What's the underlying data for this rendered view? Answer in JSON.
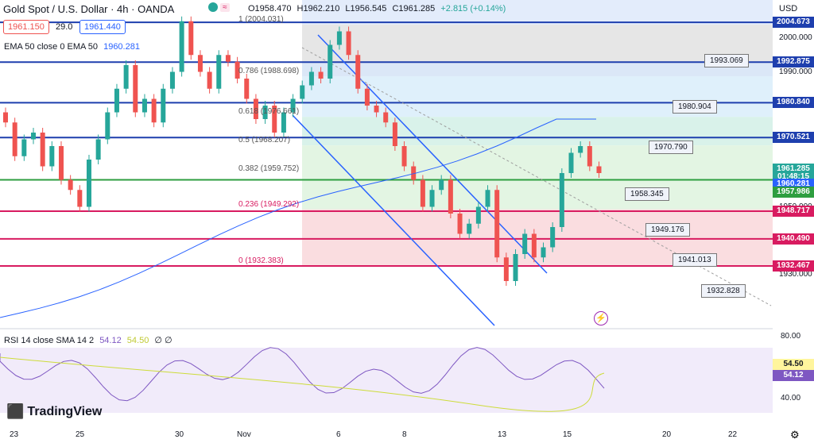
{
  "header": {
    "symbol": "Gold Spot / U.S. Dollar · 4h · OANDA",
    "ohlc": {
      "o": "O1958.470",
      "h": "H1962.210",
      "l": "L1956.545",
      "c": "C1961.285",
      "chg": "+2.815 (+0.14%)"
    },
    "sell": "1961.150",
    "spread": "29.0",
    "buy": "1961.440",
    "ema_label": "EMA 50 close 0 EMA 50",
    "ema_value": "1960.281",
    "currency": "USD"
  },
  "price_axis": [
    "2000.000",
    "1990.000",
    "1970.000",
    "1950.000",
    "1930.000"
  ],
  "price_tags": [
    {
      "value": "2004.673",
      "color": "#1e3fae",
      "price": 2004.673
    },
    {
      "value": "1992.875",
      "color": "#1e3fae",
      "price": 1992.875
    },
    {
      "value": "1980.840",
      "color": "#1e3fae",
      "price": 1980.84
    },
    {
      "value": "1970.521",
      "color": "#1e3fae",
      "price": 1970.521
    },
    {
      "value": "1961.285",
      "color": "#26a69a",
      "price": 1961.285
    },
    {
      "value": "01:48:15",
      "color": "#26a69a",
      "price": 1958.9
    },
    {
      "value": "1960.281",
      "color": "#2962ff",
      "price": 1956.6
    },
    {
      "value": "1957.986",
      "color": "#2e9e40",
      "price": 1954.3
    },
    {
      "value": "1948.717",
      "color": "#d81b60",
      "price": 1948.717
    },
    {
      "value": "1940.490",
      "color": "#d81b60",
      "price": 1940.49
    },
    {
      "value": "1932.467",
      "color": "#d81b60",
      "price": 1932.467
    }
  ],
  "fib_labels": [
    {
      "text": "1 (2004.031)",
      "price": 2004.031
    },
    {
      "text": "0.786 (1988.698)",
      "price": 1988.698
    },
    {
      "text": "0.618 (1976.661)",
      "price": 1976.661
    },
    {
      "text": "0.5 (1968.207)",
      "price": 1968.207
    },
    {
      "text": "0.382 (1959.752)",
      "price": 1959.752
    },
    {
      "text": "0.236 (1949.292)",
      "price": 1949.292
    },
    {
      "text": "0 (1932.383)",
      "price": 1932.383
    }
  ],
  "annotations": [
    "1993.069",
    "1980.904",
    "1970.790",
    "1958.345",
    "1949.176",
    "1941.013",
    "1932.828"
  ],
  "rsi": {
    "label": "RSI 14 close SMA 14 2",
    "v1": "54.12",
    "v2": "54.50",
    "extra": "∅ ∅",
    "axis": [
      "80.00",
      "40.00"
    ]
  },
  "time_axis": [
    "23",
    "25",
    "30",
    "Nov",
    "6",
    "8",
    "13",
    "15",
    "20",
    "22"
  ],
  "logo": "TradingView",
  "colors": {
    "up": "#26a69a",
    "down": "#ef5350",
    "blue_line": "#1e3fae",
    "red_line": "#d81b60",
    "green_line": "#2e9e40"
  }
}
